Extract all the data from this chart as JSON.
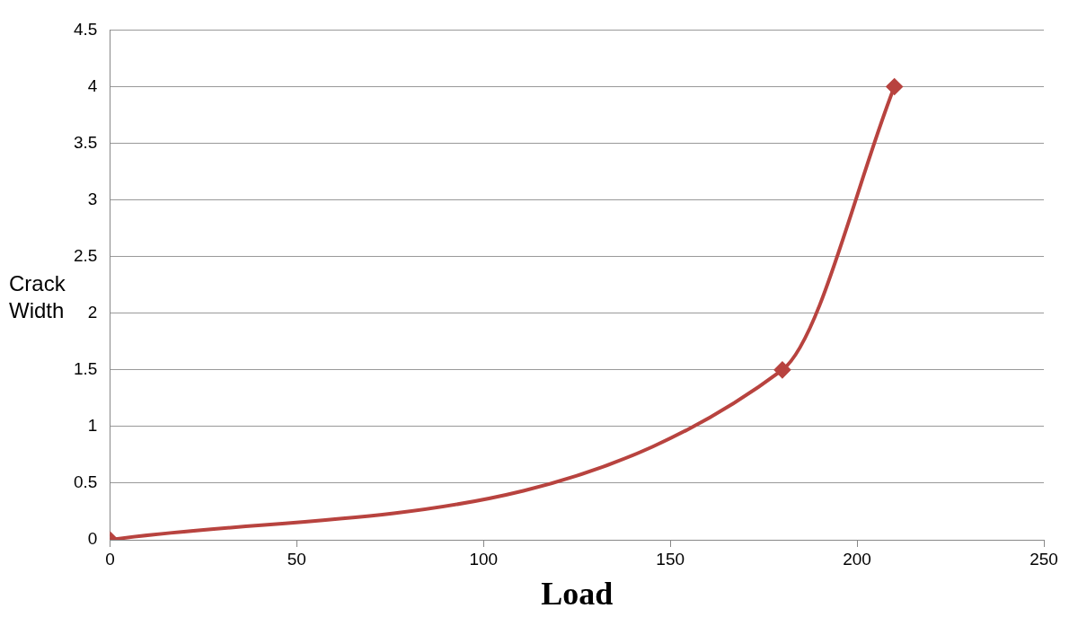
{
  "chart_data": {
    "type": "line",
    "xlabel": "Load",
    "ylabel": "Crack Width",
    "x": [
      0,
      180,
      210
    ],
    "series": [
      {
        "color": "#b8433f",
        "values": [
          0,
          1.5,
          4
        ]
      }
    ],
    "xlim": [
      0,
      250
    ],
    "xticks": [
      0,
      50,
      100,
      150,
      200,
      250
    ],
    "ylim": [
      0,
      4.5
    ],
    "yticks": [
      0,
      0.5,
      1,
      1.5,
      2,
      2.5,
      3,
      3.5,
      4,
      4.5
    ],
    "grid": "y",
    "legend": false,
    "marker": "diamond",
    "line_style": "solid"
  }
}
